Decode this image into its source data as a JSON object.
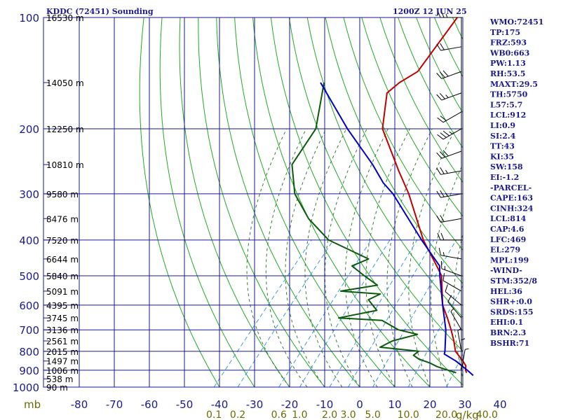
{
  "header": {
    "title": "KDDC (72451) Sounding",
    "time": "1200Z 12 JUN 25"
  },
  "axes": {
    "pressure_unit": "mb",
    "mixing_ratio_unit": "g/kg",
    "pressure_ticks": [
      100,
      200,
      300,
      400,
      500,
      600,
      700,
      800,
      900,
      1000
    ],
    "temperature_ticks": [
      -80,
      -70,
      -60,
      -50,
      -40,
      -30,
      -20,
      -10,
      0,
      10,
      20,
      30,
      40
    ],
    "mixing_ratio_ticks": [
      "0.1",
      "0.2",
      "0.6",
      "1.0",
      "2.0",
      "3.0",
      "5.0",
      "10.0",
      "20.0",
      "40.0"
    ],
    "height_labels": [
      "16530 m",
      "14050 m",
      "12250 m",
      "10810 m",
      "9580 m",
      "8476 m",
      "7520 m",
      "6644 m",
      "5840 m",
      "5091 m",
      "4395 m",
      "3745 m",
      "3136 m",
      "2561 m",
      "2015 m",
      "1497 m",
      "1006 m",
      "538 m",
      "90 m"
    ]
  },
  "stats": [
    "WMO:72451",
    "TP:175",
    "FRZ:593",
    "WB0:663",
    "PW:1.13",
    "RH:53.5",
    "MAXT:29.5",
    "TH:5750",
    "L57:5.7",
    "LCL:912",
    "LI:0.9",
    "SI:2.4",
    "TT:43",
    "KI:35",
    "SW:158",
    "EI:-1.2",
    "-PARCEL-",
    "CAPE:163",
    "CINH:324",
    "LCL:814",
    "CAP:4.6",
    "LFC:469",
    "EL:279",
    "MPL:199",
    "-WIND-",
    "STM:352/8",
    "HEL:36",
    "SHR+:0.0",
    "SRDS:155",
    "EHI:0.1",
    "BRN:2.3",
    "BSHR:71"
  ],
  "colors": {
    "grid": "#1a1a8c",
    "dry_adiabat": "#22aa22",
    "moist_adiabat": "#3a7a3a",
    "mixing_ratio": "#3a9ad9",
    "temperature": "#c00000",
    "dewpoint": "#0b5a0b",
    "parcel": "#0000c0",
    "wind": "#000000"
  },
  "chart_data": {
    "type": "line",
    "title": "KDDC (72451) Sounding",
    "x_axis": "temperature (C), skewed",
    "y_axis": "pressure (mb), log scale",
    "xlim": [
      -80,
      40
    ],
    "ylim": [
      1000,
      100
    ],
    "grid": true,
    "series": [
      {
        "key": "temperature",
        "points": [
          [
            100,
            -63
          ],
          [
            140,
            -61
          ],
          [
            150,
            -63.5
          ],
          [
            160,
            -64.5
          ],
          [
            200,
            -57
          ],
          [
            260,
            -42
          ],
          [
            300,
            -33.5
          ],
          [
            400,
            -18
          ],
          [
            480,
            -6.5
          ],
          [
            500,
            -4
          ],
          [
            600,
            3.5
          ],
          [
            650,
            8
          ],
          [
            700,
            12
          ],
          [
            750,
            15.5
          ],
          [
            800,
            18.5
          ],
          [
            850,
            23
          ],
          [
            875,
            25
          ],
          [
            900,
            26
          ],
          [
            915,
            27
          ]
        ]
      },
      {
        "key": "dewpoint",
        "points": [
          [
            150,
            -85
          ],
          [
            200,
            -76
          ],
          [
            250,
            -74
          ],
          [
            300,
            -66
          ],
          [
            350,
            -56
          ],
          [
            400,
            -45
          ],
          [
            450,
            -29
          ],
          [
            470,
            -32
          ],
          [
            500,
            -26
          ],
          [
            530,
            -20
          ],
          [
            550,
            -29
          ],
          [
            560,
            -17
          ],
          [
            580,
            -19
          ],
          [
            620,
            -14
          ],
          [
            650,
            -23
          ],
          [
            660,
            -10
          ],
          [
            700,
            -3
          ],
          [
            720,
            3.5
          ],
          [
            750,
            -2
          ],
          [
            780,
            -4
          ],
          [
            800,
            8
          ],
          [
            820,
            7.5
          ],
          [
            840,
            10
          ],
          [
            860,
            14
          ],
          [
            880,
            17
          ],
          [
            900,
            21
          ],
          [
            915,
            24
          ]
        ]
      },
      {
        "key": "parcel",
        "points": [
          [
            150,
            -86
          ],
          [
            200,
            -67
          ],
          [
            250,
            -51
          ],
          [
            280,
            -43.5
          ],
          [
            300,
            -38
          ],
          [
            400,
            -18.5
          ],
          [
            470,
            -7
          ],
          [
            500,
            -4.5
          ],
          [
            600,
            3.5
          ],
          [
            700,
            10.5
          ],
          [
            800,
            15.5
          ],
          [
            814,
            16
          ],
          [
            850,
            21
          ],
          [
            900,
            26.5
          ],
          [
            930,
            29.5
          ]
        ]
      }
    ],
    "wind_barbs": [
      {
        "p": 100,
        "dir": 270,
        "spd": 25
      },
      {
        "p": 120,
        "dir": 260,
        "spd": 20
      },
      {
        "p": 140,
        "dir": 250,
        "spd": 30
      },
      {
        "p": 160,
        "dir": 250,
        "spd": 25
      },
      {
        "p": 180,
        "dir": 240,
        "spd": 20
      },
      {
        "p": 200,
        "dir": 240,
        "spd": 35
      },
      {
        "p": 230,
        "dir": 250,
        "spd": 30
      },
      {
        "p": 260,
        "dir": 260,
        "spd": 25
      },
      {
        "p": 300,
        "dir": 260,
        "spd": 25
      },
      {
        "p": 350,
        "dir": 260,
        "spd": 20
      },
      {
        "p": 400,
        "dir": 270,
        "spd": 20
      },
      {
        "p": 450,
        "dir": 280,
        "spd": 15
      },
      {
        "p": 500,
        "dir": 290,
        "spd": 15
      },
      {
        "p": 550,
        "dir": 300,
        "spd": 10
      },
      {
        "p": 600,
        "dir": 310,
        "spd": 10
      },
      {
        "p": 650,
        "dir": 320,
        "spd": 10
      },
      {
        "p": 700,
        "dir": 330,
        "spd": 5
      },
      {
        "p": 800,
        "dir": 350,
        "spd": 5
      },
      {
        "p": 850,
        "dir": 360,
        "spd": 5
      },
      {
        "p": 900,
        "dir": 10,
        "spd": 5
      }
    ]
  }
}
